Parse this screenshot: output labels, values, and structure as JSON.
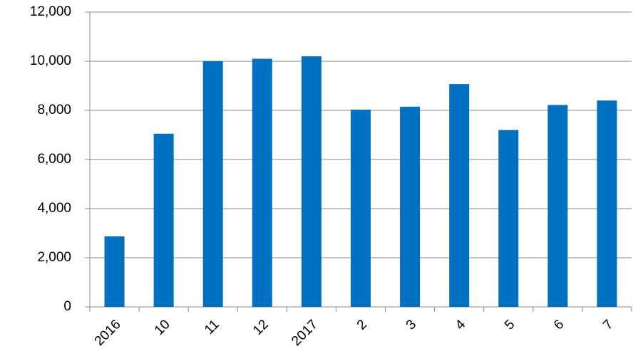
{
  "chart_data": {
    "type": "bar",
    "categories": [
      "2016",
      "10",
      "11",
      "12",
      "2017",
      "2",
      "3",
      "4",
      "5",
      "6",
      "7"
    ],
    "values": [
      2870,
      7050,
      10000,
      10100,
      10200,
      8030,
      8150,
      9070,
      7200,
      8220,
      8400
    ],
    "color": "#0070c0",
    "ylim": [
      0,
      12000
    ],
    "yticks": [
      0,
      {
        "value": 2000,
        "label": "2,000"
      },
      {
        "value": 4000,
        "label": "4,000"
      },
      {
        "value": 6000,
        "label": "6,000"
      },
      {
        "value": 8000,
        "label": "8,000"
      },
      {
        "value": 10000,
        "label": "10,000"
      },
      {
        "value": 12000,
        "label": "12,000"
      }
    ],
    "grid": true
  }
}
